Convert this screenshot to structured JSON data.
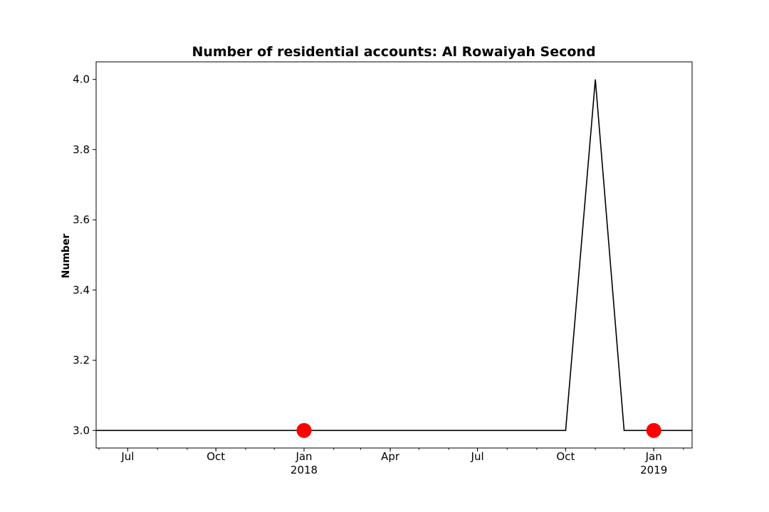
{
  "chart_data": {
    "type": "line",
    "title": "Number of residential accounts: Al Rowaiyah Second",
    "xlabel": "",
    "ylabel": "Number",
    "xlim": [
      "2017-05-29",
      "2019-02-10"
    ],
    "ylim": [
      2.95,
      4.05
    ],
    "grid": false,
    "legend": "none",
    "y_ticks": [
      {
        "value": 3.0,
        "label": "3.0"
      },
      {
        "value": 3.2,
        "label": "3.2"
      },
      {
        "value": 3.4,
        "label": "3.4"
      },
      {
        "value": 3.6,
        "label": "3.6"
      },
      {
        "value": 3.8,
        "label": "3.8"
      },
      {
        "value": 4.0,
        "label": "4.0"
      }
    ],
    "x_ticks": [
      {
        "date": "2017-07-01",
        "label": "Jul",
        "sublabel": ""
      },
      {
        "date": "2017-10-01",
        "label": "Oct",
        "sublabel": ""
      },
      {
        "date": "2018-01-01",
        "label": "Jan",
        "sublabel": "2018"
      },
      {
        "date": "2018-04-01",
        "label": "Apr",
        "sublabel": ""
      },
      {
        "date": "2018-07-01",
        "label": "Jul",
        "sublabel": ""
      },
      {
        "date": "2018-10-01",
        "label": "Oct",
        "sublabel": ""
      },
      {
        "date": "2019-01-01",
        "label": "Jan",
        "sublabel": "2019"
      }
    ],
    "series": [
      {
        "color": "#000000",
        "points": [
          {
            "x": "2017-05-29",
            "y": 3
          },
          {
            "x": "2018-10-01",
            "y": 3
          },
          {
            "x": "2018-11-01",
            "y": 4
          },
          {
            "x": "2018-12-01",
            "y": 3
          },
          {
            "x": "2019-02-10",
            "y": 3
          }
        ]
      }
    ],
    "markers": {
      "color": "#ff0000",
      "points": [
        {
          "x": "2018-01-01",
          "y": 3
        },
        {
          "x": "2019-01-01",
          "y": 3
        }
      ]
    }
  }
}
